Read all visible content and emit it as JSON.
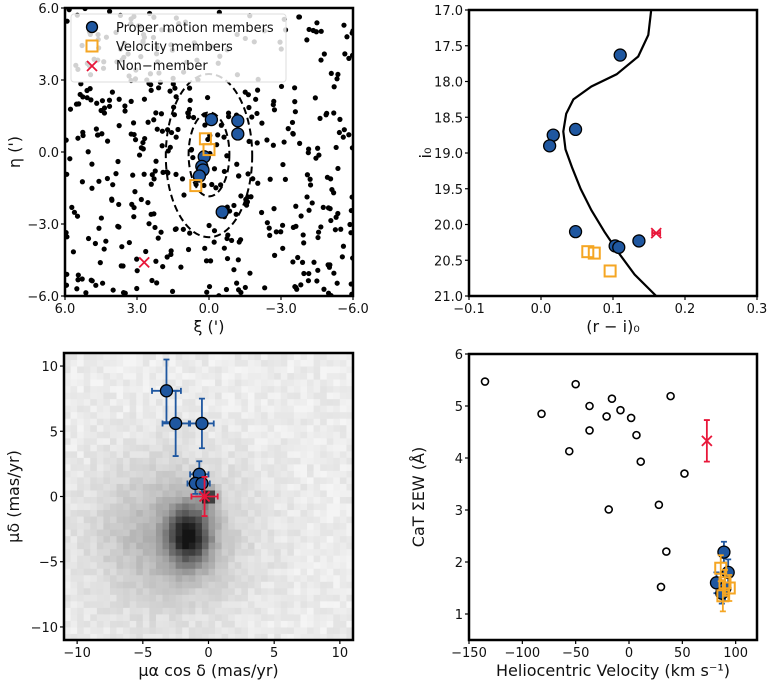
{
  "colors": {
    "pm_member": "#1f57a0",
    "velocity_member": "#f5a623",
    "non_member": "#e8173a",
    "field": "#000000"
  },
  "chart_data": [
    {
      "id": "sky",
      "type": "scatter",
      "xlabel": "ξ (')",
      "ylabel": "η (')",
      "xlim": [
        6.0,
        -6.0
      ],
      "ylim": [
        -6.0,
        6.0
      ],
      "xticks": [
        "6.0",
        "3.0",
        "0.0",
        "−3.0",
        "−6.0"
      ],
      "xtick_values": [
        6,
        3,
        0,
        -3,
        -6
      ],
      "yticks": [
        "−6.0",
        "−3.0",
        "0.0",
        "3.0",
        "6.0"
      ],
      "ytick_values": [
        -6,
        -3,
        0,
        3,
        6
      ],
      "legend": {
        "placement": "top-left",
        "entries": [
          "Proper motion members",
          "Velocity members",
          "Non−member"
        ]
      },
      "ellipses": [
        {
          "center": [
            0.0,
            -0.1
          ],
          "semi_axes": [
            0.85,
            1.75
          ],
          "style": "dashed"
        },
        {
          "center": [
            0.0,
            -0.15
          ],
          "semi_axes": [
            1.8,
            3.4
          ],
          "style": "dashed"
        }
      ],
      "series": [
        {
          "name": "Proper motion members",
          "points": [
            [
              -0.1,
              1.35
            ],
            [
              -1.2,
              1.3
            ],
            [
              -1.2,
              0.75
            ],
            [
              0.2,
              -0.2
            ],
            [
              0.3,
              -0.6
            ],
            [
              0.25,
              -0.75
            ],
            [
              0.4,
              -1.0
            ],
            [
              -0.55,
              -2.5
            ]
          ]
        },
        {
          "name": "Velocity members",
          "points": [
            [
              0.15,
              0.55
            ],
            [
              0.0,
              0.1
            ],
            [
              0.55,
              -1.4
            ]
          ]
        },
        {
          "name": "Non−member",
          "points": [
            [
              2.7,
              -4.6
            ]
          ]
        }
      ],
      "field_stars": "~450 points uniformly distributed"
    },
    {
      "id": "cmd",
      "type": "scatter",
      "xlabel": "(r − i)₀",
      "ylabel": "i₀",
      "xlim": [
        -0.1,
        0.3
      ],
      "ylim": [
        21.0,
        17.0
      ],
      "xticks": [
        "−0.1",
        "0.0",
        "0.1",
        "0.2",
        "0.3"
      ],
      "xtick_values": [
        -0.1,
        0.0,
        0.1,
        0.2,
        0.3
      ],
      "yticks": [
        "17.0",
        "17.5",
        "18.0",
        "18.5",
        "19.0",
        "19.5",
        "20.0",
        "20.5",
        "21.0"
      ],
      "ytick_values": [
        17.0,
        17.5,
        18.0,
        18.5,
        19.0,
        19.5,
        20.0,
        20.5,
        21.0
      ],
      "isochrone": [
        [
          0.153,
          17.0
        ],
        [
          0.149,
          17.35
        ],
        [
          0.135,
          17.65
        ],
        [
          0.105,
          17.9
        ],
        [
          0.07,
          18.07
        ],
        [
          0.045,
          18.25
        ],
        [
          0.035,
          18.45
        ],
        [
          0.031,
          18.7
        ],
        [
          0.034,
          18.95
        ],
        [
          0.043,
          19.2
        ],
        [
          0.055,
          19.5
        ],
        [
          0.07,
          19.8
        ],
        [
          0.088,
          20.1
        ],
        [
          0.108,
          20.4
        ],
        [
          0.13,
          20.7
        ],
        [
          0.16,
          21.0
        ]
      ],
      "series": [
        {
          "name": "Proper motion members",
          "points": [
            [
              0.11,
              17.63
            ],
            [
              0.017,
              18.75
            ],
            [
              0.012,
              18.9
            ],
            [
              0.048,
              18.67
            ],
            [
              0.048,
              20.1
            ],
            [
              0.136,
              20.23
            ],
            [
              0.103,
              20.3
            ],
            [
              0.108,
              20.32
            ]
          ]
        },
        {
          "name": "Velocity members",
          "points": [
            [
              0.065,
              20.38
            ],
            [
              0.074,
              20.4
            ],
            [
              0.096,
              20.65
            ]
          ]
        },
        {
          "name": "Non−member",
          "points": [
            [
              0.16,
              20.12
            ]
          ]
        }
      ]
    },
    {
      "id": "pm",
      "type": "scatter",
      "xlabel": "μα cos δ (mas/yr)",
      "ylabel": "μδ (mas/yr)",
      "xlim": [
        -11,
        11
      ],
      "ylim": [
        -11,
        11
      ],
      "xticks": [
        "−10",
        "−5",
        "0",
        "5",
        "10"
      ],
      "xtick_values": [
        -10,
        -5,
        0,
        5,
        10
      ],
      "yticks": [
        "−10",
        "−5",
        "0",
        "5",
        "10"
      ],
      "ytick_values": [
        -10,
        -5,
        0,
        5,
        10
      ],
      "background": "2D histogram of field proper motions, peak near (-1.5, -3)",
      "series": [
        {
          "name": "Proper motion members",
          "points": [
            [
              -3.2,
              8.1,
              1.1,
              2.4
            ],
            [
              -2.5,
              5.6,
              1.0,
              2.5
            ],
            [
              -0.5,
              5.6,
              0.9,
              1.9
            ],
            [
              -0.7,
              1.7,
              0.7,
              1.0
            ],
            [
              -1.0,
              1.0,
              0.6,
              0.8
            ],
            [
              -0.5,
              1.0,
              0.6,
              0.8
            ]
          ]
        },
        {
          "name": "Non−member",
          "points": [
            [
              -0.3,
              0.0,
              1.0,
              1.5
            ]
          ]
        }
      ]
    },
    {
      "id": "cat",
      "type": "scatter",
      "xlabel": "Heliocentric Velocity (km s⁻¹)",
      "ylabel": "CaT ΣEW (Å)",
      "xlim": [
        -150,
        120
      ],
      "ylim": [
        0.5,
        6
      ],
      "xticks": [
        "−150",
        "−100",
        "−50",
        "0",
        "50",
        "100"
      ],
      "xtick_values": [
        -150,
        -100,
        -50,
        0,
        50,
        100
      ],
      "yticks": [
        "1",
        "2",
        "3",
        "4",
        "5",
        "6"
      ],
      "ytick_values": [
        1,
        2,
        3,
        4,
        5,
        6
      ],
      "series": [
        {
          "name": "Non-members (open)",
          "points": [
            [
              -135,
              5.47
            ],
            [
              -82,
              4.85
            ],
            [
              -50,
              5.42
            ],
            [
              -37,
              5.0
            ],
            [
              -37,
              4.53
            ],
            [
              -56,
              4.13
            ],
            [
              -21,
              4.8
            ],
            [
              -16,
              5.14
            ],
            [
              -8,
              4.92
            ],
            [
              2,
              4.77
            ],
            [
              7,
              4.44
            ],
            [
              11,
              3.93
            ],
            [
              -19,
              3.01
            ],
            [
              39,
              5.19
            ],
            [
              52,
              3.7
            ],
            [
              28,
              3.1
            ],
            [
              35,
              2.2
            ],
            [
              30,
              1.52
            ]
          ]
        },
        {
          "name": "Proper motion members",
          "points": [
            [
              82,
              1.6,
              0.2
            ],
            [
              89,
              2.19,
              0.2
            ],
            [
              93,
              1.8,
              0.25
            ],
            [
              90,
              1.5,
              0.25
            ],
            [
              87,
              1.4,
              0.2
            ]
          ]
        },
        {
          "name": "Velocity members",
          "points": [
            [
              86,
              1.88,
              0.25
            ],
            [
              90,
              1.6,
              0.25
            ],
            [
              94,
              1.5,
              0.25
            ],
            [
              88,
              1.35,
              0.3
            ]
          ]
        },
        {
          "name": "Non−member",
          "points": [
            [
              73,
              4.33,
              0.4
            ]
          ]
        }
      ]
    }
  ]
}
